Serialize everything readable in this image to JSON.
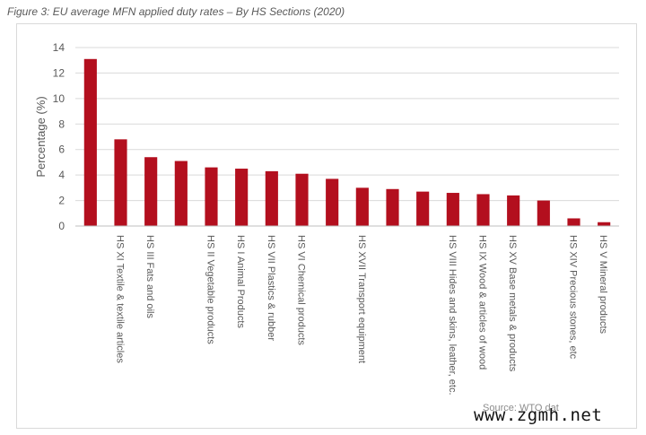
{
  "figure_title": "Figure 3: EU average MFN applied duty rates – By HS Sections (2020)",
  "source_text": "Source: WTO dat",
  "watermark_text": "www.zgmh.net",
  "chart_data": {
    "type": "bar",
    "title": "",
    "xlabel": "",
    "ylabel": "Percentage (%)",
    "ylim": [
      0,
      14
    ],
    "yticks": [
      0,
      2,
      4,
      6,
      8,
      10,
      12,
      14
    ],
    "grid": true,
    "legend": "none",
    "bar_color": "#b30f1e",
    "categories": [
      "",
      "HS XI Textile & textile articles",
      "HS III Fats and oils",
      "",
      "HS II Vegetable products",
      "HS I Animal Products",
      "HS VII Plastics & rubber",
      "HS VI Chemical products",
      "",
      "HS XVII Transport equipment",
      "",
      "",
      "HS VIII Hides and skins, leather, etc.",
      "HS IX Wood & articles of wood",
      "HS XV Base metals & products",
      "",
      "HS XIV Precious stones, etc",
      "HS V Mineral products"
    ],
    "values": [
      13.1,
      6.8,
      5.4,
      5.1,
      4.6,
      4.5,
      4.3,
      4.1,
      3.7,
      3.0,
      2.9,
      2.7,
      2.6,
      2.5,
      2.4,
      2.0,
      0.6,
      0.3
    ]
  }
}
